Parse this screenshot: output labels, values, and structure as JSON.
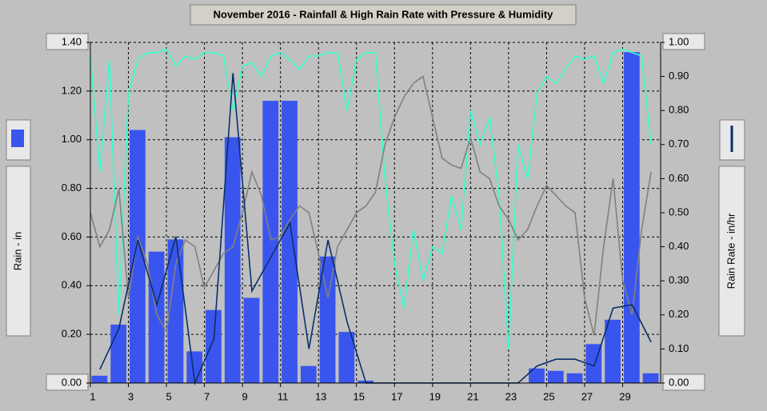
{
  "chart_data": {
    "type": "bar",
    "title": "November 2016 - Rainfall & High Rain Rate with Pressure & Humidity",
    "ylabel": "Rain - in",
    "y2label": "Rain Rate - in/hr",
    "xlim": [
      1,
      31
    ],
    "xticks": [
      1,
      3,
      5,
      7,
      9,
      11,
      13,
      15,
      17,
      19,
      21,
      23,
      25,
      27,
      29
    ],
    "ylim": [
      0,
      1.4
    ],
    "yticks": [
      {
        "value": 0,
        "label": "0.00"
      },
      {
        "value": 0.2,
        "label": "0.20"
      },
      {
        "value": 0.4,
        "label": "0.40"
      },
      {
        "value": 0.6,
        "label": "0.60"
      },
      {
        "value": 0.8,
        "label": "0.80"
      },
      {
        "value": 1.0,
        "label": "1.00"
      },
      {
        "value": 1.2,
        "label": "1.20"
      },
      {
        "value": 1.4,
        "label": "1.40"
      }
    ],
    "y2lim": [
      0,
      1
    ],
    "y2ticks": [
      {
        "value": 0,
        "label": "0.00"
      },
      {
        "value": 0.1,
        "label": "0.10"
      },
      {
        "value": 0.2,
        "label": "0.20"
      },
      {
        "value": 0.3,
        "label": "0.30"
      },
      {
        "value": 0.4,
        "label": "0.40"
      },
      {
        "value": 0.5,
        "label": "0.50"
      },
      {
        "value": 0.6,
        "label": "0.60"
      },
      {
        "value": 0.7,
        "label": "0.70"
      },
      {
        "value": 0.8,
        "label": "0.80"
      },
      {
        "value": 0.9,
        "label": "0.90"
      },
      {
        "value": 1.0,
        "label": "1.00"
      }
    ],
    "grid": true,
    "series": [
      {
        "type": "bar",
        "color": "#3a55ee",
        "x": [
          1,
          2,
          3,
          4,
          5,
          6,
          7,
          8,
          9,
          10,
          11,
          12,
          13,
          14,
          15,
          16,
          17,
          18,
          19,
          20,
          21,
          22,
          23,
          24,
          25,
          26,
          27,
          28,
          29,
          30
        ],
        "values": [
          0.03,
          0.24,
          1.04,
          0.54,
          0.59,
          0.13,
          0.3,
          1.01,
          0.35,
          1.16,
          1.16,
          0.07,
          0.52,
          0.21,
          0.01,
          0,
          0,
          0,
          0,
          0,
          0,
          0,
          0,
          0.06,
          0.05,
          0.04,
          0.16,
          0.26,
          1.36,
          0.04
        ]
      },
      {
        "type": "line",
        "axis": "y2",
        "color": "#33ffcc",
        "x": [
          1,
          1.5,
          2,
          2.5,
          3,
          3.5,
          4,
          4.5,
          5,
          5.5,
          6,
          6.5,
          7,
          7.5,
          8,
          8.5,
          9,
          9.5,
          10,
          10.5,
          11,
          11.5,
          12,
          12.5,
          13,
          13.5,
          14,
          14.5,
          15,
          15.5,
          16,
          16.5,
          17,
          17.5,
          18,
          18.5,
          19,
          19.5,
          20,
          20.5,
          21,
          21.5,
          22,
          22.5,
          23,
          23.5,
          24,
          24.5,
          25,
          25.5,
          26,
          26.5,
          27,
          27.5,
          28,
          28.5,
          29,
          29.5,
          30,
          30.5
        ],
        "values": [
          0.96,
          0.62,
          0.95,
          0.2,
          0.85,
          0.95,
          0.97,
          0.97,
          0.98,
          0.93,
          0.96,
          0.95,
          0.97,
          0.97,
          0.96,
          0.8,
          0.93,
          0.94,
          0.9,
          0.96,
          0.97,
          0.95,
          0.92,
          0.96,
          0.96,
          0.97,
          0.97,
          0.8,
          0.95,
          0.97,
          0.97,
          0.6,
          0.35,
          0.22,
          0.45,
          0.3,
          0.4,
          0.38,
          0.55,
          0.45,
          0.8,
          0.7,
          0.78,
          0.55,
          0.1,
          0.7,
          0.6,
          0.85,
          0.9,
          0.88,
          0.92,
          0.96,
          0.95,
          0.96,
          0.88,
          0.97,
          0.98,
          0.97,
          0.96,
          0.7
        ]
      },
      {
        "type": "line",
        "axis": "y2",
        "color": "#808080",
        "x": [
          1,
          1.5,
          2,
          2.5,
          3,
          3.5,
          4,
          4.5,
          5,
          5.5,
          6,
          6.5,
          7,
          7.5,
          8,
          8.5,
          9,
          9.5,
          10,
          10.5,
          11,
          11.5,
          12,
          12.5,
          13,
          13.5,
          14,
          14.5,
          15,
          15.5,
          16,
          16.5,
          17,
          17.5,
          18,
          18.5,
          19,
          19.5,
          20,
          20.5,
          21,
          21.5,
          22,
          22.5,
          23,
          23.5,
          24,
          24.5,
          25,
          25.5,
          26,
          26.5,
          27,
          27.5,
          28,
          28.5,
          29,
          29.5,
          30,
          30.5
        ],
        "values": [
          0.5,
          0.4,
          0.45,
          0.57,
          0.25,
          0.43,
          0.35,
          0.2,
          0.15,
          0.35,
          0.42,
          0.4,
          0.28,
          0.33,
          0.38,
          0.4,
          0.5,
          0.62,
          0.55,
          0.42,
          0.43,
          0.48,
          0.52,
          0.5,
          0.38,
          0.25,
          0.4,
          0.45,
          0.5,
          0.52,
          0.56,
          0.7,
          0.78,
          0.84,
          0.88,
          0.9,
          0.78,
          0.66,
          0.64,
          0.63,
          0.72,
          0.62,
          0.6,
          0.52,
          0.48,
          0.42,
          0.45,
          0.52,
          0.58,
          0.55,
          0.52,
          0.5,
          0.25,
          0.14,
          0.4,
          0.6,
          0.3,
          0.2,
          0.45,
          0.62
        ]
      },
      {
        "type": "line",
        "axis": "y2",
        "color": "#0a2f6b",
        "x": [
          1.5,
          2.5,
          3.5,
          4.5,
          5.5,
          6.5,
          7.5,
          8.5,
          9.5,
          10.5,
          11.5,
          12.5,
          13.5,
          14.5,
          15.5,
          16.5,
          17.5,
          18.5,
          19.5,
          20.5,
          21.5,
          22.5,
          23.5,
          24.5,
          25.5,
          26.5,
          27.5,
          28.5,
          29.5,
          30.5
        ],
        "values": [
          0.04,
          0.16,
          0.42,
          0.23,
          0.43,
          0,
          0.13,
          0.91,
          0.27,
          0.37,
          0.47,
          0.1,
          0.42,
          0.18,
          0,
          0,
          0,
          0,
          0,
          0,
          0,
          0,
          0,
          0.05,
          0.07,
          0.07,
          0.05,
          0.22,
          0.23,
          0.12
        ]
      }
    ]
  }
}
